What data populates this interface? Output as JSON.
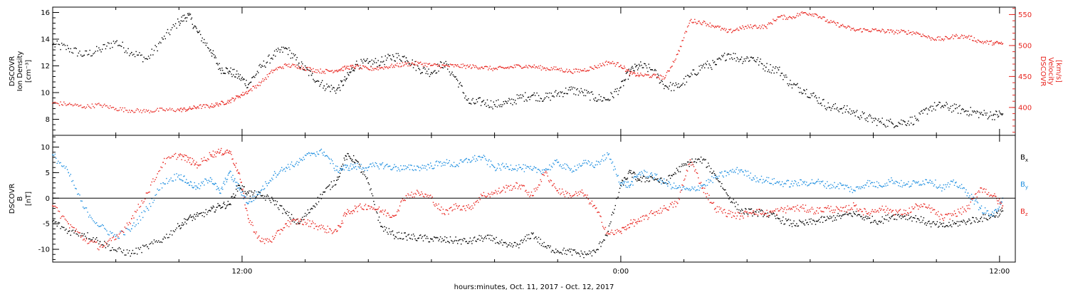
{
  "colors": {
    "black": "#000000",
    "red": "#e8251f",
    "blue": "#1f8fe0"
  },
  "chart_data": [
    {
      "type": "scatter",
      "panel": "top",
      "x_unit": "hours since 2017-10-11 00:00 UTC",
      "xlim": [
        6.0,
        36.5
      ],
      "y_left": {
        "label_lines": [
          "DSCOVR",
          "Ion Density"
        ],
        "unit_label": "[cm⁻³]",
        "lim": [
          6.8,
          16.4
        ],
        "ticks": [
          8,
          10,
          12,
          14,
          16
        ],
        "tick_labels": [
          "8",
          "10",
          "12",
          "14",
          "16"
        ]
      },
      "y_right": {
        "label_lines": [
          "DSCOVR",
          "Velocity"
        ],
        "unit_label": "[km/s]",
        "lim": [
          355,
          562
        ],
        "ticks": [
          400,
          450,
          500,
          550
        ],
        "tick_labels": [
          "400",
          "450",
          "500",
          "550"
        ]
      },
      "series": [
        {
          "color": "black",
          "axis": "left",
          "x": [
            6.0,
            6.5,
            7.0,
            7.5,
            8.0,
            8.5,
            9.0,
            9.5,
            10.0,
            10.3,
            10.6,
            11.0,
            11.3,
            11.6,
            11.9,
            12.2,
            12.6,
            13.0,
            13.4,
            13.8,
            14.2,
            14.6,
            15.0,
            15.3,
            15.6,
            16.0,
            16.4,
            16.8,
            17.2,
            17.6,
            18.0,
            18.4,
            18.8,
            19.2,
            19.6,
            20.0,
            20.4,
            20.8,
            21.2,
            21.6,
            22.0,
            22.4,
            22.8,
            23.2,
            23.6,
            24.0,
            24.3,
            24.6,
            25.0,
            25.4,
            25.8,
            26.2,
            26.6,
            27.0,
            27.4,
            27.8,
            28.2,
            28.6,
            29.0,
            29.4,
            29.8,
            30.2,
            30.6,
            31.0,
            31.4,
            31.8,
            32.2,
            32.6,
            33.0,
            33.4,
            33.8,
            34.2,
            34.6,
            35.0,
            35.4,
            35.8,
            36.1
          ],
          "values": [
            13.6,
            13.3,
            12.8,
            13.2,
            13.8,
            13.0,
            12.5,
            14.0,
            15.3,
            15.8,
            14.5,
            13.2,
            11.8,
            11.6,
            11.2,
            10.6,
            11.9,
            12.8,
            13.3,
            12.2,
            11.3,
            10.5,
            10.2,
            11.0,
            12.1,
            12.2,
            12.3,
            12.7,
            12.6,
            11.8,
            11.5,
            12.2,
            11.0,
            9.2,
            9.3,
            9.1,
            9.2,
            9.6,
            9.8,
            9.6,
            9.9,
            10.2,
            10.0,
            9.6,
            9.5,
            10.4,
            11.6,
            12.0,
            11.7,
            10.5,
            10.4,
            11.2,
            12.0,
            12.1,
            12.9,
            12.5,
            12.6,
            11.9,
            11.7,
            10.6,
            10.2,
            9.6,
            8.9,
            8.8,
            8.5,
            8.1,
            7.8,
            7.7,
            7.8,
            8.0,
            8.9,
            9.0,
            8.8,
            8.6,
            8.4,
            8.3,
            8.4
          ]
        },
        {
          "color": "red",
          "axis": "right",
          "x": [
            6.0,
            6.5,
            7.0,
            7.5,
            8.0,
            8.5,
            9.0,
            9.5,
            10.0,
            10.3,
            10.6,
            11.0,
            11.3,
            11.6,
            11.9,
            12.2,
            12.6,
            13.0,
            13.4,
            13.8,
            14.2,
            14.6,
            15.0,
            15.3,
            15.6,
            16.0,
            16.4,
            16.8,
            17.2,
            17.6,
            18.0,
            18.4,
            18.8,
            19.2,
            19.6,
            20.0,
            20.4,
            20.8,
            21.2,
            21.6,
            22.0,
            22.4,
            22.8,
            23.2,
            23.6,
            24.0,
            24.3,
            24.6,
            25.0,
            25.4,
            25.8,
            26.2,
            26.6,
            27.0,
            27.4,
            27.8,
            28.2,
            28.6,
            29.0,
            29.4,
            29.8,
            30.2,
            30.6,
            31.0,
            31.4,
            31.8,
            32.2,
            32.6,
            33.0,
            33.4,
            33.8,
            34.2,
            34.6,
            35.0,
            35.4,
            35.8,
            36.1
          ],
          "values": [
            407,
            405,
            401,
            404,
            398,
            395,
            394,
            396,
            396,
            397,
            401,
            402,
            406,
            410,
            418,
            426,
            440,
            460,
            468,
            466,
            461,
            458,
            460,
            464,
            466,
            462,
            464,
            467,
            470,
            471,
            468,
            467,
            467,
            466,
            465,
            462,
            464,
            467,
            466,
            463,
            462,
            458,
            460,
            465,
            473,
            468,
            455,
            452,
            451,
            448,
            486,
            540,
            537,
            531,
            522,
            528,
            531,
            530,
            546,
            545,
            553,
            550,
            538,
            532,
            525,
            525,
            524,
            522,
            522,
            520,
            512,
            510,
            515,
            514,
            506,
            504,
            503
          ]
        }
      ]
    },
    {
      "type": "scatter",
      "panel": "bottom",
      "x_unit": "hours since 2017-10-11 00:00 UTC",
      "xlim": [
        6.0,
        36.5
      ],
      "y_left": {
        "label_lines": [
          "DSCOVR",
          "B"
        ],
        "unit_label": "[nT]",
        "lim": [
          -12.5,
          12.3
        ],
        "ticks": [
          -10,
          -5,
          0,
          5,
          10
        ],
        "tick_labels": [
          "-10",
          "-5",
          "0",
          "5",
          "10"
        ]
      },
      "zero_line": true,
      "legend_position": "right",
      "series": [
        {
          "name": "B_x",
          "label_main": "B",
          "label_sub": "x",
          "color": "black",
          "x": [
            6.0,
            6.5,
            7.0,
            7.5,
            8.0,
            8.5,
            9.0,
            9.5,
            10.0,
            10.3,
            10.6,
            11.0,
            11.3,
            11.6,
            11.9,
            12.2,
            12.6,
            13.0,
            13.4,
            13.8,
            14.2,
            14.6,
            15.0,
            15.3,
            15.6,
            16.0,
            16.4,
            16.8,
            17.2,
            17.6,
            18.0,
            18.4,
            18.8,
            19.2,
            19.6,
            20.0,
            20.4,
            20.8,
            21.2,
            21.6,
            22.0,
            22.4,
            22.8,
            23.2,
            23.6,
            24.0,
            24.3,
            24.6,
            25.0,
            25.4,
            25.8,
            26.2,
            26.6,
            27.0,
            27.4,
            27.8,
            28.2,
            28.6,
            29.0,
            29.4,
            29.8,
            30.2,
            30.6,
            31.0,
            31.4,
            31.8,
            32.2,
            32.6,
            33.0,
            33.4,
            33.8,
            34.2,
            34.6,
            35.0,
            35.4,
            35.8,
            36.1
          ],
          "values": [
            -4.5,
            -6.5,
            -7.0,
            -8.5,
            -10.2,
            -10.8,
            -9.5,
            -8.0,
            -5.5,
            -4.0,
            -3.5,
            -2.5,
            -1.5,
            -1.2,
            2.5,
            1.0,
            0.5,
            -0.5,
            -3.0,
            -5.0,
            -2.0,
            1.2,
            3.5,
            8.2,
            7.5,
            3.0,
            -5.5,
            -7.2,
            -7.5,
            -7.8,
            -8.0,
            -8.2,
            -8.3,
            -8.5,
            -7.8,
            -8.0,
            -9.5,
            -9.0,
            -7.0,
            -9.5,
            -10.3,
            -10.5,
            -11.0,
            -10.6,
            -6.5,
            2.5,
            5.0,
            3.5,
            4.0,
            3.0,
            5.5,
            7.0,
            7.5,
            4.5,
            0.5,
            -2.5,
            -2.8,
            -3.0,
            -4.0,
            -5.0,
            -5.0,
            -4.5,
            -4.0,
            -3.5,
            -3.0,
            -4.0,
            -4.5,
            -3.5,
            -3.5,
            -4.0,
            -5.0,
            -5.5,
            -5.0,
            -4.5,
            -4.0,
            -3.5,
            -2.5
          ]
        },
        {
          "name": "B_y",
          "label_main": "B",
          "label_sub": "y",
          "color": "blue",
          "x": [
            6.0,
            6.5,
            7.0,
            7.5,
            8.0,
            8.5,
            9.0,
            9.5,
            10.0,
            10.3,
            10.6,
            11.0,
            11.3,
            11.6,
            11.9,
            12.2,
            12.6,
            13.0,
            13.4,
            13.8,
            14.2,
            14.6,
            15.0,
            15.3,
            15.6,
            16.0,
            16.4,
            16.8,
            17.2,
            17.6,
            18.0,
            18.4,
            18.8,
            19.2,
            19.6,
            20.0,
            20.4,
            20.8,
            21.2,
            21.6,
            22.0,
            22.4,
            22.8,
            23.2,
            23.6,
            24.0,
            24.3,
            24.6,
            25.0,
            25.4,
            25.8,
            26.2,
            26.6,
            27.0,
            27.4,
            27.8,
            28.2,
            28.6,
            29.0,
            29.4,
            29.8,
            30.2,
            30.6,
            31.0,
            31.4,
            31.8,
            32.2,
            32.6,
            33.0,
            33.4,
            33.8,
            34.2,
            34.6,
            35.0,
            35.4,
            35.8,
            36.1
          ],
          "values": [
            8.5,
            5.0,
            -2.0,
            -5.5,
            -7.5,
            -6.0,
            -2.0,
            3.0,
            4.5,
            3.0,
            2.0,
            4.0,
            1.0,
            5.0,
            2.0,
            -1.0,
            1.5,
            4.5,
            6.0,
            7.0,
            8.8,
            9.0,
            5.5,
            6.0,
            6.2,
            6.0,
            6.5,
            6.0,
            5.8,
            6.0,
            6.3,
            7.0,
            6.5,
            7.5,
            8.0,
            6.0,
            6.2,
            6.0,
            5.5,
            5.5,
            7.0,
            5.5,
            6.8,
            6.5,
            8.5,
            3.0,
            2.5,
            5.0,
            4.5,
            3.0,
            2.0,
            1.5,
            2.5,
            4.0,
            5.0,
            5.5,
            4.0,
            3.5,
            3.0,
            2.8,
            3.0,
            3.2,
            2.5,
            2.5,
            1.5,
            3.0,
            2.5,
            3.5,
            2.5,
            3.0,
            3.5,
            2.0,
            3.0,
            1.0,
            -2.0,
            -3.5,
            0.0
          ]
        },
        {
          "name": "B_z",
          "label_main": "B",
          "label_sub": "z",
          "color": "red",
          "x": [
            6.0,
            6.5,
            7.0,
            7.5,
            8.0,
            8.5,
            9.0,
            9.5,
            10.0,
            10.3,
            10.6,
            11.0,
            11.3,
            11.6,
            11.9,
            12.2,
            12.6,
            13.0,
            13.4,
            13.8,
            14.2,
            14.6,
            15.0,
            15.3,
            15.6,
            16.0,
            16.4,
            16.8,
            17.2,
            17.6,
            18.0,
            18.4,
            18.8,
            19.2,
            19.6,
            20.0,
            20.4,
            20.8,
            21.2,
            21.6,
            22.0,
            22.4,
            22.8,
            23.2,
            23.6,
            24.0,
            24.3,
            24.6,
            25.0,
            25.4,
            25.8,
            26.2,
            26.6,
            27.0,
            27.4,
            27.8,
            28.2,
            28.6,
            29.0,
            29.4,
            29.8,
            30.2,
            30.6,
            31.0,
            31.4,
            31.8,
            32.2,
            32.6,
            33.0,
            33.4,
            33.8,
            34.2,
            34.6,
            35.0,
            35.4,
            35.8,
            36.1
          ],
          "values": [
            -1.5,
            -5.0,
            -8.0,
            -9.5,
            -8.0,
            -4.0,
            1.0,
            7.0,
            8.5,
            7.5,
            6.5,
            8.5,
            9.0,
            9.2,
            5.0,
            -4.0,
            -8.5,
            -8.0,
            -5.0,
            -4.5,
            -5.0,
            -6.0,
            -6.5,
            -3.0,
            -2.0,
            -1.5,
            -2.5,
            -3.5,
            0.5,
            1.0,
            0.0,
            -3.0,
            -1.5,
            -2.0,
            0.5,
            1.0,
            2.0,
            2.5,
            0.5,
            5.0,
            1.5,
            0.5,
            1.0,
            -2.0,
            -7.0,
            -6.5,
            -5.0,
            -4.5,
            -3.0,
            -2.0,
            -1.0,
            7.5,
            2.0,
            -2.0,
            -3.0,
            -3.5,
            -2.5,
            -3.0,
            -2.5,
            -2.0,
            -2.0,
            -2.5,
            -2.0,
            -2.5,
            -1.5,
            -3.0,
            -2.0,
            -2.5,
            -3.0,
            -1.5,
            -2.0,
            -4.0,
            -3.0,
            -2.0,
            2.0,
            0.5,
            -1.5
          ]
        }
      ]
    }
  ],
  "shared_x_axis": {
    "ticks": [
      12,
      24,
      36
    ],
    "tick_labels": [
      "12:00",
      "0:00",
      "12:00"
    ],
    "minor_step": 2,
    "title": "hours:minutes, Oct. 11, 2017 - Oct. 12, 2017"
  }
}
